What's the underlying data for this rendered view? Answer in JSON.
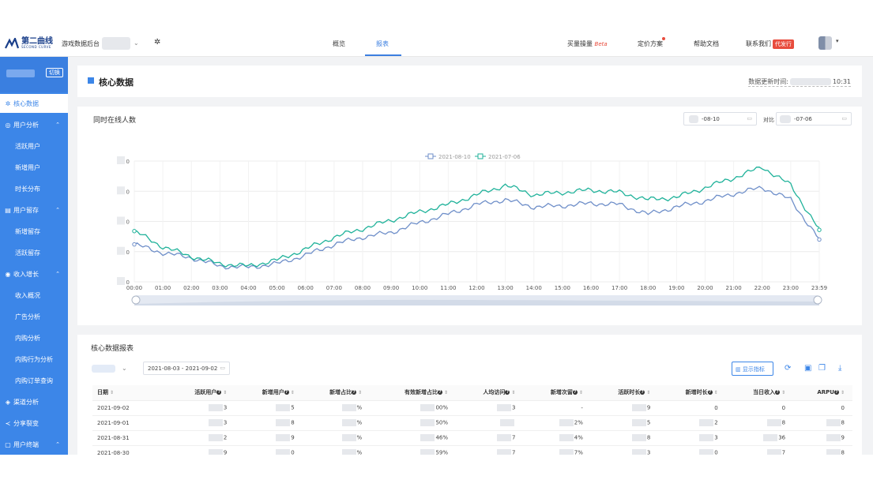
{
  "header": {
    "logo_cn": "第二曲线",
    "logo_en": "SECOND CURVE",
    "app_name": "游戏数据后台",
    "nav_tabs": [
      {
        "label": "概览",
        "active": false
      },
      {
        "label": "报表",
        "active": true
      }
    ],
    "right_links": {
      "ad_volume": "买量操量",
      "beta": "Beta",
      "pricing": "定价方案",
      "help": "帮助文档",
      "contact": "联系我们",
      "contact_badge": "代发行"
    }
  },
  "sidebar": {
    "switch_label": "切换",
    "items": [
      {
        "label": "核心数据",
        "icon": "gear-icon",
        "active": true,
        "sub": false
      },
      {
        "label": "用户分析",
        "icon": "user-analysis-icon",
        "active": false,
        "sub": false,
        "expanded": true
      },
      {
        "label": "活跃用户",
        "active": false,
        "sub": true
      },
      {
        "label": "新增用户",
        "active": false,
        "sub": true
      },
      {
        "label": "时长分布",
        "active": false,
        "sub": true
      },
      {
        "label": "用户留存",
        "icon": "retention-icon",
        "active": false,
        "sub": false,
        "expanded": true
      },
      {
        "label": "新增留存",
        "active": false,
        "sub": true
      },
      {
        "label": "活跃留存",
        "active": false,
        "sub": true
      },
      {
        "label": "收入增长",
        "icon": "revenue-icon",
        "active": false,
        "sub": false,
        "expanded": true
      },
      {
        "label": "收入概况",
        "active": false,
        "sub": true
      },
      {
        "label": "广告分析",
        "active": false,
        "sub": true
      },
      {
        "label": "内购分析",
        "active": false,
        "sub": true
      },
      {
        "label": "内购行为分析",
        "active": false,
        "sub": true
      },
      {
        "label": "内购订单查询",
        "active": false,
        "sub": true
      },
      {
        "label": "渠道分析",
        "icon": "channel-icon",
        "active": false,
        "sub": false
      },
      {
        "label": "分享裂变",
        "icon": "share-icon",
        "active": false,
        "sub": false
      },
      {
        "label": "用户终端",
        "icon": "device-icon",
        "active": false,
        "sub": false,
        "expanded": true
      }
    ]
  },
  "main": {
    "page_title": "核心数据",
    "update_time_label": "数据更新时间:",
    "update_time_value": "10:31",
    "chart_card": {
      "title": "同时在线人数",
      "date_a": "-08-10",
      "compare_label": "对比",
      "date_b": "-07-06"
    },
    "table_card": {
      "title": "核心数据报表",
      "date_range": "2021-08-03 - 2021-09-02",
      "show_metrics_label": "显示指标",
      "columns": [
        "日期",
        "活跃用户",
        "新增用户",
        "新增占比",
        "有效新增占比",
        "人均访问",
        "新增次留",
        "活跃时长",
        "新增时长",
        "当日收入",
        "ARPU"
      ],
      "rows": [
        [
          "2021-09-02",
          "3",
          "5",
          "%",
          "00%",
          "3",
          "-",
          "9",
          "0",
          "0",
          "0"
        ],
        [
          "2021-09-01",
          "3",
          "8",
          "%",
          "50%",
          "",
          "2%",
          "5",
          "2",
          "8",
          "8"
        ],
        [
          "2021-08-31",
          "2",
          "9",
          "%",
          "46%",
          "7",
          "4%",
          "8",
          "3",
          "36",
          "9"
        ],
        [
          "2021-08-30",
          "9",
          "0",
          "%",
          "59%",
          "7",
          "7%",
          "3",
          "0",
          "7",
          "8"
        ]
      ]
    }
  },
  "chart_data": {
    "type": "line",
    "title": "",
    "xlabel": "",
    "ylabel": "",
    "x": [
      "00:00",
      "01:00",
      "02:00",
      "03:00",
      "04:00",
      "05:00",
      "06:00",
      "07:00",
      "08:00",
      "09:00",
      "10:00",
      "11:00",
      "12:00",
      "13:00",
      "14:00",
      "15:00",
      "16:00",
      "17:00",
      "18:00",
      "19:00",
      "20:00",
      "21:00",
      "22:00",
      "23:00",
      "23:59"
    ],
    "y_tick_labels": [
      "0",
      "0",
      "0",
      "0",
      "0"
    ],
    "ylim": [
      0,
      100
    ],
    "series": [
      {
        "name": "2021-08-10",
        "color": "#6f8fc9",
        "values": [
          31,
          24,
          20,
          13,
          12,
          15,
          22,
          31,
          37,
          41,
          49,
          56,
          64,
          68,
          62,
          63,
          65,
          64,
          56,
          62,
          67,
          73,
          78,
          68,
          35
        ]
      },
      {
        "name": "2021-07-06",
        "color": "#1fb29a",
        "values": [
          42,
          29,
          21,
          15,
          13,
          18,
          27,
          37,
          44,
          51,
          58,
          64,
          72,
          80,
          72,
          74,
          76,
          74,
          68,
          70,
          78,
          86,
          95,
          80,
          43
        ]
      }
    ],
    "legend_position": "top-center",
    "grid": true
  }
}
